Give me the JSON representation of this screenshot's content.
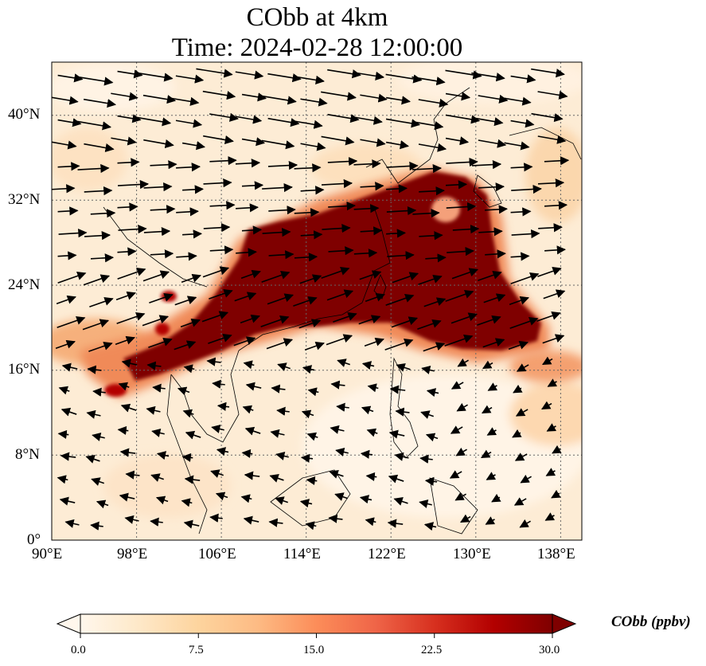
{
  "title_line1": "CObb at 4km",
  "title_line2": "Time: 2024-02-28 12:00:00",
  "map": {
    "lon_range": [
      90,
      140
    ],
    "lat_range": [
      0,
      45
    ],
    "lon_ticks": [
      "90°E",
      "98°E",
      "106°E",
      "114°E",
      "122°E",
      "130°E",
      "138°E"
    ],
    "lat_ticks": [
      "0°",
      "8°N",
      "16°N",
      "24°N",
      "32°N",
      "40°N"
    ],
    "gridlines": true,
    "field": "CObb concentration",
    "wind_vectors": true
  },
  "colorbar": {
    "label": "CObb (ppbv)",
    "ticks": [
      "0.0",
      "7.5",
      "15.0",
      "22.5",
      "30.0"
    ],
    "min": 0,
    "max": 30,
    "extend": "both",
    "colormap": [
      "#fff7ec",
      "#fee8c8",
      "#fdd49e",
      "#fdbb84",
      "#fc8d59",
      "#ef6548",
      "#d7301f",
      "#b30000",
      "#7f0000"
    ]
  }
}
